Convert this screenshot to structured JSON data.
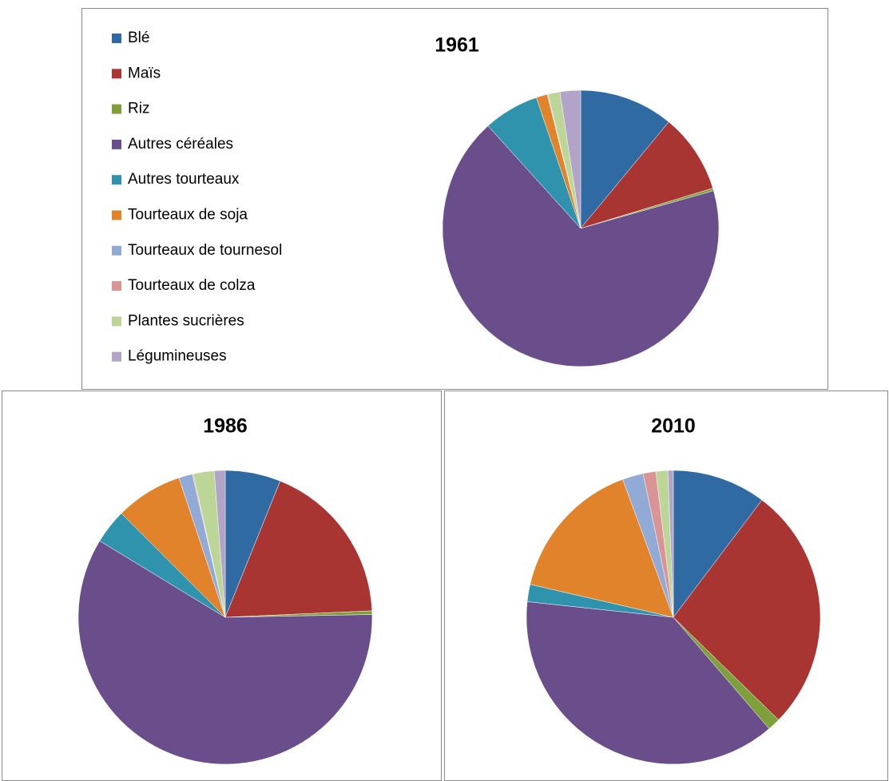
{
  "chart_data": [
    {
      "type": "pie",
      "title": "1961",
      "categories": [
        "Blé",
        "Maïs",
        "Riz",
        "Autres céréales",
        "Autres tourteaux",
        "Tourteaux de soja",
        "Tourteaux de tournesol",
        "Tourteaux de colza",
        "Plantes sucrières",
        "Légumineuses"
      ],
      "colors": [
        "#2f6aa3",
        "#a83532",
        "#7ea03a",
        "#6a4e8c",
        "#2f93ad",
        "#e0832a",
        "#92abd6",
        "#d99595",
        "#bcd698",
        "#b2a3c9"
      ],
      "legend": "left",
      "values": [
        11,
        9.3,
        0.3,
        67.7,
        6.5,
        1.3,
        0.1,
        0,
        1.4,
        2.4
      ]
    },
    {
      "type": "pie",
      "title": "1986",
      "values": [
        6.1,
        18.2,
        0.4,
        59.0,
        3.8,
        7.4,
        1.5,
        0.1,
        2.3,
        1.2
      ]
    },
    {
      "type": "pie",
      "title": "2010",
      "values": [
        10.3,
        27,
        1.4,
        38,
        1.9,
        15.8,
        2.3,
        1.4,
        1.3,
        0.6
      ]
    }
  ]
}
